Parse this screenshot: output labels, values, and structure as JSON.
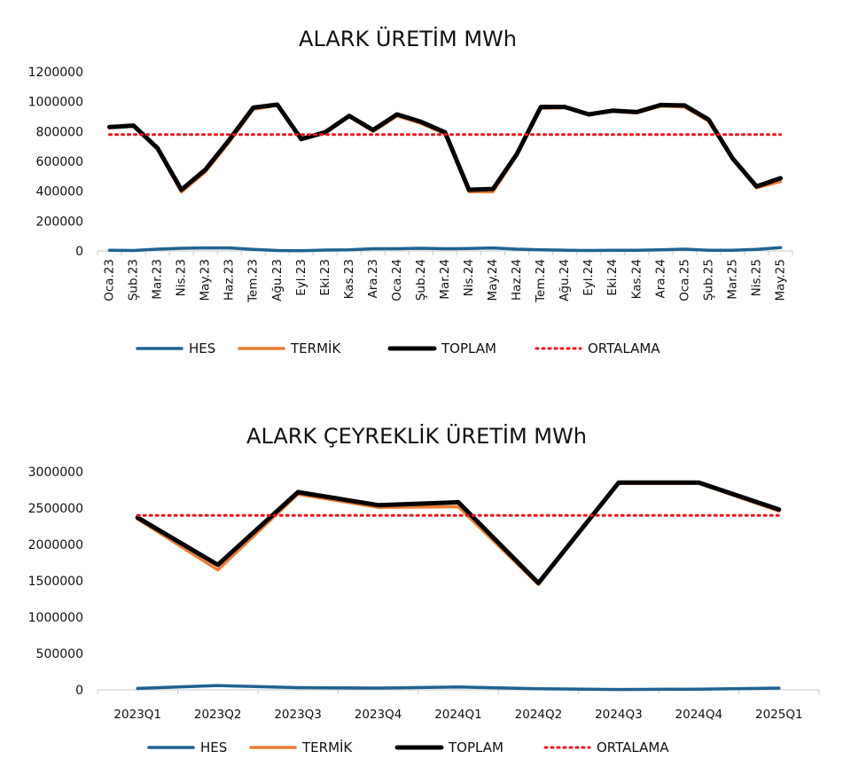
{
  "colors": {
    "hes": "#1f6391",
    "termik": "#ed7d31",
    "toplam": "#000000",
    "ortalama": "#e8141c",
    "axis": "#c8c8c8"
  },
  "chart_data": [
    {
      "type": "line",
      "title": "ALARK ÜRETİM MWh",
      "xlabel": "",
      "ylabel": "",
      "ylim": [
        0,
        1200000
      ],
      "yticks": [
        "0",
        "200000",
        "400000",
        "600000",
        "800000",
        "1000000",
        "1200000"
      ],
      "ytick_values": [
        0,
        200000,
        400000,
        600000,
        800000,
        1000000,
        1200000
      ],
      "categories": [
        "Oca.23",
        "Şub.23",
        "Mar.23",
        "Nis.23",
        "May.23",
        "Haz.23",
        "Tem.23",
        "Ağu.23",
        "Eyl.23",
        "Eki.23",
        "Kas.23",
        "Ara.23",
        "Oca.24",
        "Şub.24",
        "Mar.24",
        "Nis.24",
        "May.24",
        "Haz.24",
        "Tem.24",
        "Ağu.24",
        "Eyl.24",
        "Eki.24",
        "Kas.24",
        "Ara.24",
        "Oca.25",
        "Şub.25",
        "Mar.25",
        "Nis.25",
        "May.25"
      ],
      "grid": false,
      "legend_position": "bottom",
      "series": [
        {
          "name": "HES",
          "style": "solid",
          "values": [
            5000,
            3000,
            12000,
            18000,
            20000,
            20000,
            10000,
            3000,
            2000,
            6000,
            8000,
            15000,
            15000,
            18000,
            15000,
            16000,
            20000,
            12000,
            8000,
            5000,
            3000,
            4000,
            5000,
            8000,
            12000,
            5000,
            5000,
            10000,
            22000
          ]
        },
        {
          "name": "TERMİK",
          "style": "solid",
          "values": [
            825000,
            835000,
            680000,
            395000,
            530000,
            730000,
            950000,
            975000,
            748000,
            790000,
            900000,
            800000,
            905000,
            855000,
            785000,
            397000,
            397000,
            640000,
            955000,
            960000,
            915000,
            935000,
            925000,
            970000,
            965000,
            870000,
            615000,
            423000,
            465000
          ]
        },
        {
          "name": "TOPLAM",
          "style": "solid",
          "values": [
            830000,
            840000,
            690000,
            410000,
            545000,
            745000,
            960000,
            980000,
            750000,
            795000,
            905000,
            810000,
            915000,
            865000,
            795000,
            410000,
            415000,
            650000,
            965000,
            965000,
            915000,
            940000,
            930000,
            978000,
            975000,
            880000,
            620000,
            432000,
            487000
          ]
        },
        {
          "name": "ORTALAMA",
          "style": "dotted",
          "values": [
            780000,
            780000,
            780000,
            780000,
            780000,
            780000,
            780000,
            780000,
            780000,
            780000,
            780000,
            780000,
            780000,
            780000,
            780000,
            780000,
            780000,
            780000,
            780000,
            780000,
            780000,
            780000,
            780000,
            780000,
            780000,
            780000,
            780000,
            780000,
            780000
          ]
        }
      ]
    },
    {
      "type": "line",
      "title": "ALARK ÇEYREKLİK ÜRETİM MWh",
      "xlabel": "",
      "ylabel": "",
      "ylim": [
        0,
        3000000
      ],
      "yticks": [
        "0",
        "500000",
        "1000000",
        "1500000",
        "2000000",
        "2500000",
        "3000000"
      ],
      "ytick_values": [
        0,
        500000,
        1000000,
        1500000,
        2000000,
        2500000,
        3000000
      ],
      "categories": [
        "2023Q1",
        "2023Q2",
        "2023Q3",
        "2023Q4",
        "2024Q1",
        "2024Q2",
        "2024Q3",
        "2024Q4",
        "2025Q1"
      ],
      "grid": false,
      "legend_position": "bottom",
      "series": [
        {
          "name": "HES",
          "style": "solid",
          "values": [
            20000,
            60000,
            30000,
            25000,
            40000,
            15000,
            5000,
            10000,
            25000
          ]
        },
        {
          "name": "TERMİK",
          "style": "solid",
          "values": [
            2350000,
            1650000,
            2690000,
            2510000,
            2520000,
            1450000,
            2840000,
            2840000,
            2460000
          ]
        },
        {
          "name": "TOPLAM",
          "style": "solid",
          "values": [
            2370000,
            1720000,
            2720000,
            2540000,
            2580000,
            1470000,
            2850000,
            2850000,
            2480000
          ]
        },
        {
          "name": "ORTALAMA",
          "style": "dotted",
          "values": [
            2400000,
            2400000,
            2400000,
            2400000,
            2400000,
            2400000,
            2400000,
            2400000,
            2400000
          ]
        }
      ]
    }
  ]
}
